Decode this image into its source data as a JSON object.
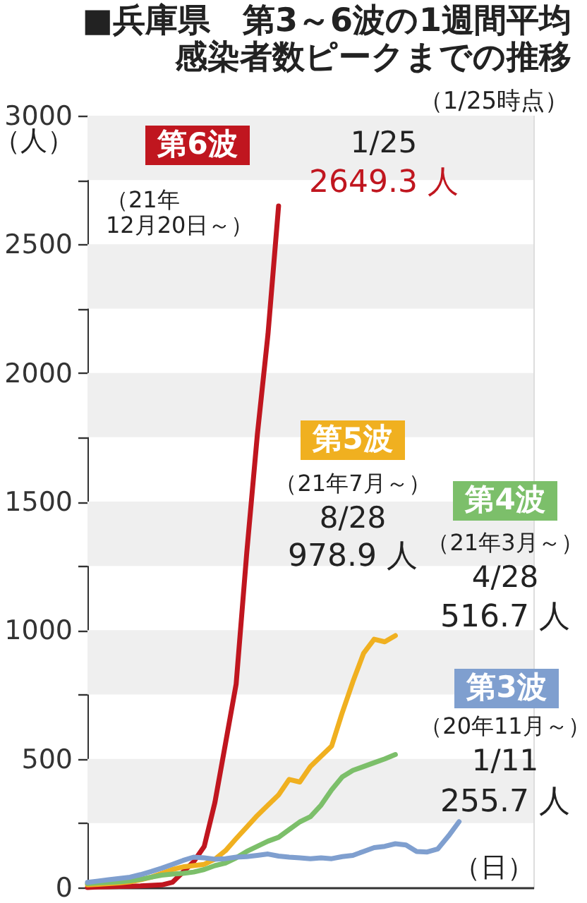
{
  "chart_data": {
    "type": "line",
    "title": "■兵庫県　第3～6波の1週間平均感染者数ピークまでの推移",
    "subtitle": "（1/25時点）",
    "xlabel": "（日）",
    "ylabel": "（人）",
    "categories": [
      null,
      null,
      null,
      null,
      null,
      null,
      null,
      null,
      null,
      null,
      null,
      null,
      null,
      null,
      null,
      null,
      null,
      null,
      null,
      null,
      null,
      null,
      null,
      null,
      null,
      null,
      null,
      null,
      null,
      null,
      null,
      null,
      null,
      null,
      null,
      null,
      null,
      null,
      null,
      null,
      null,
      null,
      null
    ],
    "ylim": [
      0,
      3000
    ],
    "yticks": [
      0,
      {
        "value": 250,
        "label": null
      },
      500,
      {
        "value": 750,
        "label": null
      },
      1000,
      {
        "value": 1250,
        "label": null
      },
      1500,
      {
        "value": 1750,
        "label": null
      },
      2000,
      {
        "value": 2250,
        "label": null
      },
      2500,
      {
        "value": 2750,
        "label": null
      },
      3000
    ],
    "bands": [
      {
        "axis": "y",
        "from": 250,
        "to": 500,
        "color": "#efefef"
      },
      {
        "axis": "y",
        "from": 750,
        "to": 1000,
        "color": "#efefef"
      },
      {
        "axis": "y",
        "from": 1250,
        "to": 1500,
        "color": "#efefef"
      },
      {
        "axis": "y",
        "from": 1750,
        "to": 2000,
        "color": "#efefef"
      },
      {
        "axis": "y",
        "from": 2250,
        "to": 2500,
        "color": "#efefef"
      },
      {
        "axis": "y",
        "from": 2750,
        "to": 3000,
        "color": "#efefef"
      }
    ],
    "series": [
      {
        "name": "第6波",
        "color": "#c0161f",
        "values": [
          0,
          2,
          3,
          4,
          5,
          6,
          8,
          10,
          20,
          60,
          100,
          160,
          330,
          560,
          790,
          1300,
          1760,
          2150,
          2649.3,
          null,
          null,
          null,
          null,
          null,
          null,
          null,
          null,
          null,
          null,
          null,
          null,
          null,
          null,
          null,
          null,
          null,
          null,
          null,
          null,
          null,
          null,
          null,
          null
        ]
      },
      {
        "name": "第5波",
        "color": "#f0b020",
        "values": [
          10,
          12,
          15,
          18,
          22,
          30,
          40,
          55,
          70,
          80,
          85,
          90,
          110,
          143,
          190,
          235,
          280,
          320,
          360,
          420,
          410,
          470,
          510,
          550,
          680,
          800,
          910,
          965,
          955,
          978.9,
          null,
          null,
          null,
          null,
          null,
          null,
          null,
          null,
          null,
          null,
          null,
          null,
          null
        ]
      },
      {
        "name": "第4波",
        "color": "#7cbf6a",
        "values": [
          15,
          18,
          20,
          22,
          26,
          32,
          40,
          48,
          52,
          55,
          60,
          70,
          85,
          95,
          115,
          140,
          160,
          180,
          195,
          225,
          255,
          275,
          320,
          380,
          430,
          455,
          470,
          485,
          500,
          516.7,
          null,
          null,
          null,
          null,
          null,
          null,
          null,
          null,
          null,
          null,
          null,
          null,
          null
        ]
      },
      {
        "name": "第3波",
        "color": "#7f9fcf",
        "values": [
          20,
          25,
          30,
          35,
          40,
          50,
          62,
          75,
          90,
          105,
          118,
          115,
          110,
          112,
          118,
          120,
          125,
          130,
          122,
          118,
          115,
          112,
          115,
          112,
          120,
          125,
          140,
          155,
          160,
          170,
          165,
          140,
          138,
          150,
          200,
          255.7,
          null,
          null,
          null,
          null,
          null,
          null,
          null
        ]
      }
    ],
    "annotations": [
      "（21年\n12月20日～）",
      "1/25",
      "2649.3 人",
      "（21年7月～）",
      "8/28",
      "978.9 人",
      "（21年3月～）",
      "4/28",
      "516.7 人",
      "（20年11月～）",
      "1/11",
      "255.7 人"
    ],
    "tick_labels": "y"
  }
}
